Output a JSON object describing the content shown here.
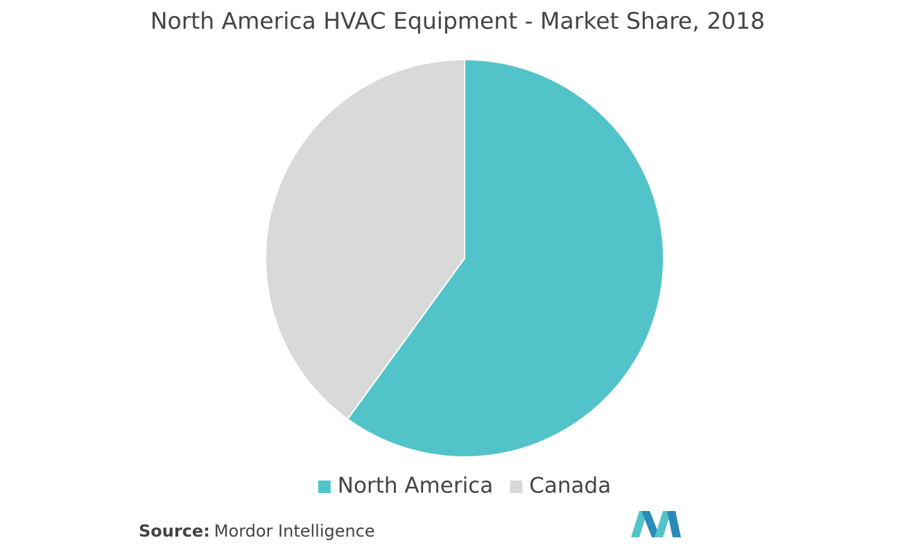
{
  "chart_data": {
    "type": "pie",
    "title": "North America HVAC Equipment - Market Share, 2018",
    "categories": [
      "North America",
      "Canada"
    ],
    "values": [
      60,
      40
    ],
    "colors": [
      "#52c4c9",
      "#d9d9d9"
    ],
    "legend": "bottom"
  },
  "source": {
    "label": "Source:",
    "text": "Mordor Intelligence"
  }
}
